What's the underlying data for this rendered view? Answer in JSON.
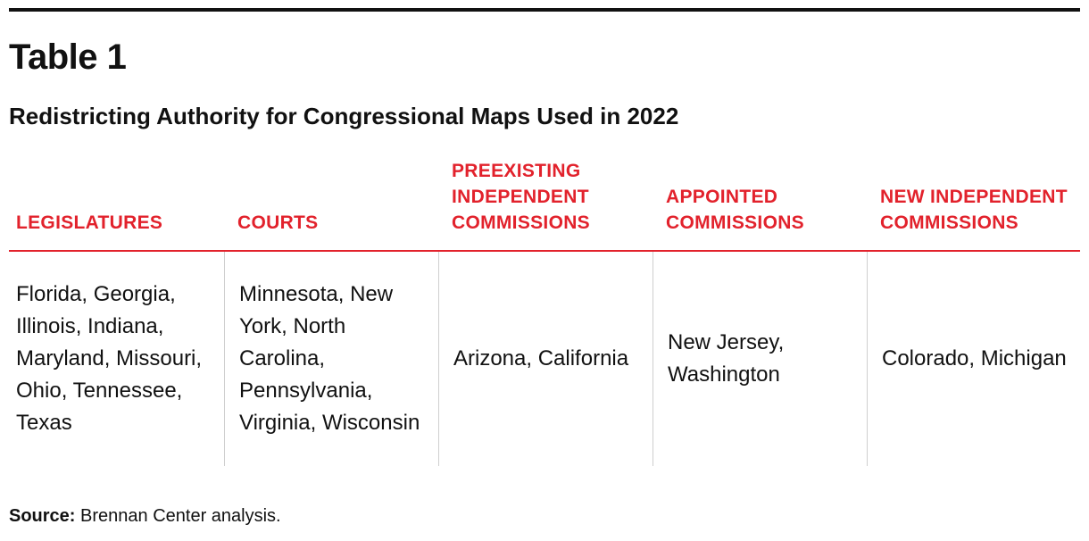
{
  "title": "Table 1",
  "subtitle": "Redistricting Authority for Congressional Maps Used in 2022",
  "columns": [
    {
      "header": "LEGISLATURES",
      "cell": "Florida, Georgia, Illinois, Indiana, Maryland, Missouri, Ohio, Tennessee, Texas"
    },
    {
      "header": "COURTS",
      "cell": "Minnesota, New York, North Carolina, Pennsylvania, Virginia, Wisconsin"
    },
    {
      "header": "PREEXISTING INDEPENDENT COMMISSIONS",
      "cell": "Arizona, California"
    },
    {
      "header": "APPOINTED COMMISSIONS",
      "cell": "New Jersey, Washington"
    },
    {
      "header": "NEW INDEPENDENT COMMISSIONS",
      "cell": "Colorado, Michigan"
    }
  ],
  "source": {
    "label": "Source:",
    "text": "Brennan Center analysis."
  },
  "colors": {
    "header_accent": "#e2222c",
    "rule": "#111111",
    "divider": "#cfcfcf"
  }
}
